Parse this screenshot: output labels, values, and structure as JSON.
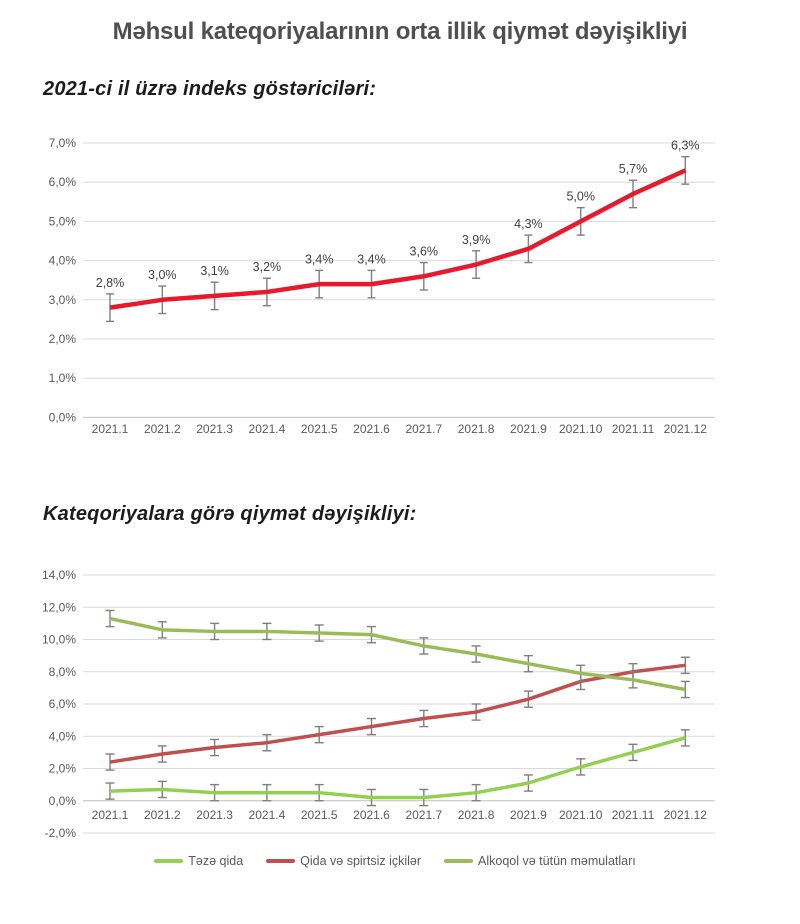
{
  "page": {
    "title": "Məhsul kateqoriyalarının orta illik qiymət dəyişikliyi",
    "sections": [
      {
        "heading": "2021-ci il üzrə indeks göstəriciləri:"
      },
      {
        "heading": "Kateqoriyalara görə qiymət dəyişikliyi:"
      }
    ]
  },
  "colors": {
    "title_text": "#4f4f4f",
    "heading_text": "#1c1c1c",
    "axis_text": "#595959",
    "point_label_text": "#404040",
    "gridline": "#d9d9d9",
    "axis_line": "#bfbfbf",
    "error_bar": "#7f7f7f",
    "annual_index_line": "#e8192c",
    "fresh_food_line": "#92d050",
    "food_drinks_line": "#c0504d",
    "alcohol_tobacco_line": "#9bbb59"
  },
  "chart_data": [
    {
      "type": "line",
      "title": "2021-ci il üzrə indeks göstəriciləri",
      "categories": [
        "2021.1",
        "2021.2",
        "2021.3",
        "2021.4",
        "2021.5",
        "2021.6",
        "2021.7",
        "2021.8",
        "2021.9",
        "2021.10",
        "2021.11",
        "2021.12"
      ],
      "series": [
        {
          "color": "#e8192c",
          "values": [
            2.8,
            3.0,
            3.1,
            3.2,
            3.4,
            3.4,
            3.6,
            3.9,
            4.3,
            5.0,
            5.7,
            6.3
          ],
          "point_labels": [
            "2,8%",
            "3,0%",
            "3,1%",
            "3,2%",
            "3,4%",
            "3,4%",
            "3,6%",
            "3,9%",
            "4,3%",
            "5,0%",
            "5,7%",
            "6,3%"
          ],
          "error_bar": 0.35
        }
      ],
      "xlabel": "",
      "ylabel": "",
      "ylim": [
        0,
        7
      ],
      "ytick_step": 1,
      "ytick_labels": [
        "0,0%",
        "1,0%",
        "2,0%",
        "3,0%",
        "4,0%",
        "5,0%",
        "6,0%",
        "7,0%"
      ],
      "grid": true,
      "legend": false
    },
    {
      "type": "line",
      "title": "Kateqoriyalara görə qiymət dəyişikliyi",
      "categories": [
        "2021.1",
        "2021.2",
        "2021.3",
        "2021.4",
        "2021.5",
        "2021.6",
        "2021.7",
        "2021.8",
        "2021.9",
        "2021.10",
        "2021.11",
        "2021.12"
      ],
      "series": [
        {
          "name": "Təzə qida",
          "color": "#92d050",
          "values": [
            0.6,
            0.7,
            0.5,
            0.5,
            0.5,
            0.2,
            0.2,
            0.5,
            1.1,
            2.1,
            3.0,
            3.9
          ],
          "error_bar": 0.5
        },
        {
          "name": "Qida və spirtsiz içkilər",
          "color": "#c0504d",
          "values": [
            2.4,
            2.9,
            3.3,
            3.6,
            4.1,
            4.6,
            5.1,
            5.5,
            6.3,
            7.4,
            8.0,
            8.4
          ],
          "error_bar": 0.5
        },
        {
          "name": "Alkoqol və tütün məmulatları",
          "color": "#9bbb59",
          "values": [
            11.3,
            10.6,
            10.5,
            10.5,
            10.4,
            10.3,
            9.6,
            9.1,
            8.5,
            7.9,
            7.5,
            6.9
          ],
          "error_bar": 0.5
        }
      ],
      "xlabel": "",
      "ylabel": "",
      "ylim": [
        -2,
        14
      ],
      "ytick_step": 2,
      "ytick_labels": [
        "-2,0%",
        "0,0%",
        "2,0%",
        "4,0%",
        "6,0%",
        "8,0%",
        "10,0%",
        "12,0%",
        "14,0%"
      ],
      "grid": true,
      "legend_position": "bottom"
    }
  ]
}
